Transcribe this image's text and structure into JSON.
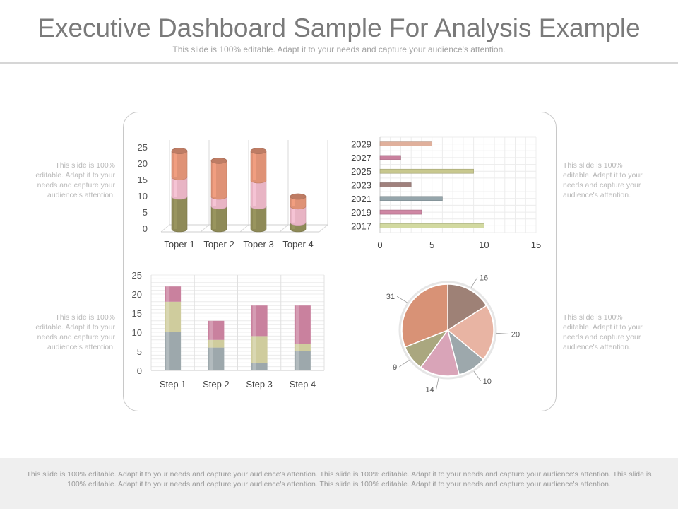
{
  "header": {
    "title": "Executive Dashboard Sample For Analysis Example",
    "subtitle": "This slide is 100% editable. Adapt it to your needs and capture your audience's attention."
  },
  "side_notes": {
    "left_top": "This slide is 100% editable. Adapt it to your needs and capture your audience's attention.",
    "left_bottom": "This slide is 100% editable. Adapt it to your needs and capture your audience's attention.",
    "right_top": "This slide is 100% editable. Adapt it to your needs and capture your audience's attention.",
    "right_bottom": "This slide is 100% editable. Adapt it to your needs and capture your audience's attention."
  },
  "footer": {
    "text": "This slide is 100% editable. Adapt it to your needs and capture your audience's attention. This slide is 100% editable. Adapt it to your needs and capture your audience's attention. This slide is 100% editable. Adapt it to your needs and capture your audience's attention. This slide is 100% editable. Adapt it to your needs and capture your audience's attention."
  },
  "chart_data": [
    {
      "type": "bar",
      "style": "3d-stacked-cylinder",
      "categories": [
        "Toper 1",
        "Toper 2",
        "Toper 3",
        "Toper 4"
      ],
      "series": [
        {
          "values": [
            10,
            7,
            7,
            2
          ],
          "color": "#8e8a57"
        },
        {
          "values": [
            6,
            3,
            8,
            5
          ],
          "color": "#e8b4c4"
        },
        {
          "values": [
            8,
            11,
            9,
            3
          ],
          "color": "#df9276"
        }
      ],
      "ylim": [
        0,
        25
      ],
      "yticks": [
        "0",
        "5",
        "10",
        "15",
        "20",
        "25"
      ],
      "grid": false
    },
    {
      "type": "bar",
      "orientation": "horizontal",
      "categories": [
        "2017",
        "2019",
        "2021",
        "2023",
        "2025",
        "2027",
        "2029"
      ],
      "values": [
        10,
        4,
        6,
        3,
        9,
        2,
        5
      ],
      "colors": [
        "#d2d9a0",
        "#cf87a4",
        "#95a5ab",
        "#a0817d",
        "#c8c88e",
        "#c9819e",
        "#e0b09c"
      ],
      "xlim": [
        0,
        15
      ],
      "xticks": [
        "0",
        "5",
        "10",
        "15"
      ],
      "grid": true
    },
    {
      "type": "bar",
      "style": "stacked",
      "categories": [
        "Step 1",
        "Step 2",
        "Step 3",
        "Step 4"
      ],
      "series": [
        {
          "values": [
            10,
            6,
            2,
            5
          ],
          "color": "#9da8ac"
        },
        {
          "values": [
            8,
            2,
            7,
            2
          ],
          "color": "#cfcc9d"
        },
        {
          "values": [
            4,
            5,
            8,
            10
          ],
          "color": "#c9819e"
        }
      ],
      "ylim": [
        0,
        25
      ],
      "yticks": [
        "0",
        "5",
        "10",
        "15",
        "20",
        "25"
      ],
      "grid": true
    },
    {
      "type": "pie",
      "slices": [
        {
          "label": "16",
          "value": 16,
          "color": "#9e8176"
        },
        {
          "label": "20",
          "value": 20,
          "color": "#e8b4a3"
        },
        {
          "label": "10",
          "value": 10,
          "color": "#9da8ac"
        },
        {
          "label": "14",
          "value": 14,
          "color": "#d9a4b8"
        },
        {
          "label": "9",
          "value": 9,
          "color": "#aaa77f"
        },
        {
          "label": "31",
          "value": 31,
          "color": "#d89276"
        }
      ]
    }
  ]
}
